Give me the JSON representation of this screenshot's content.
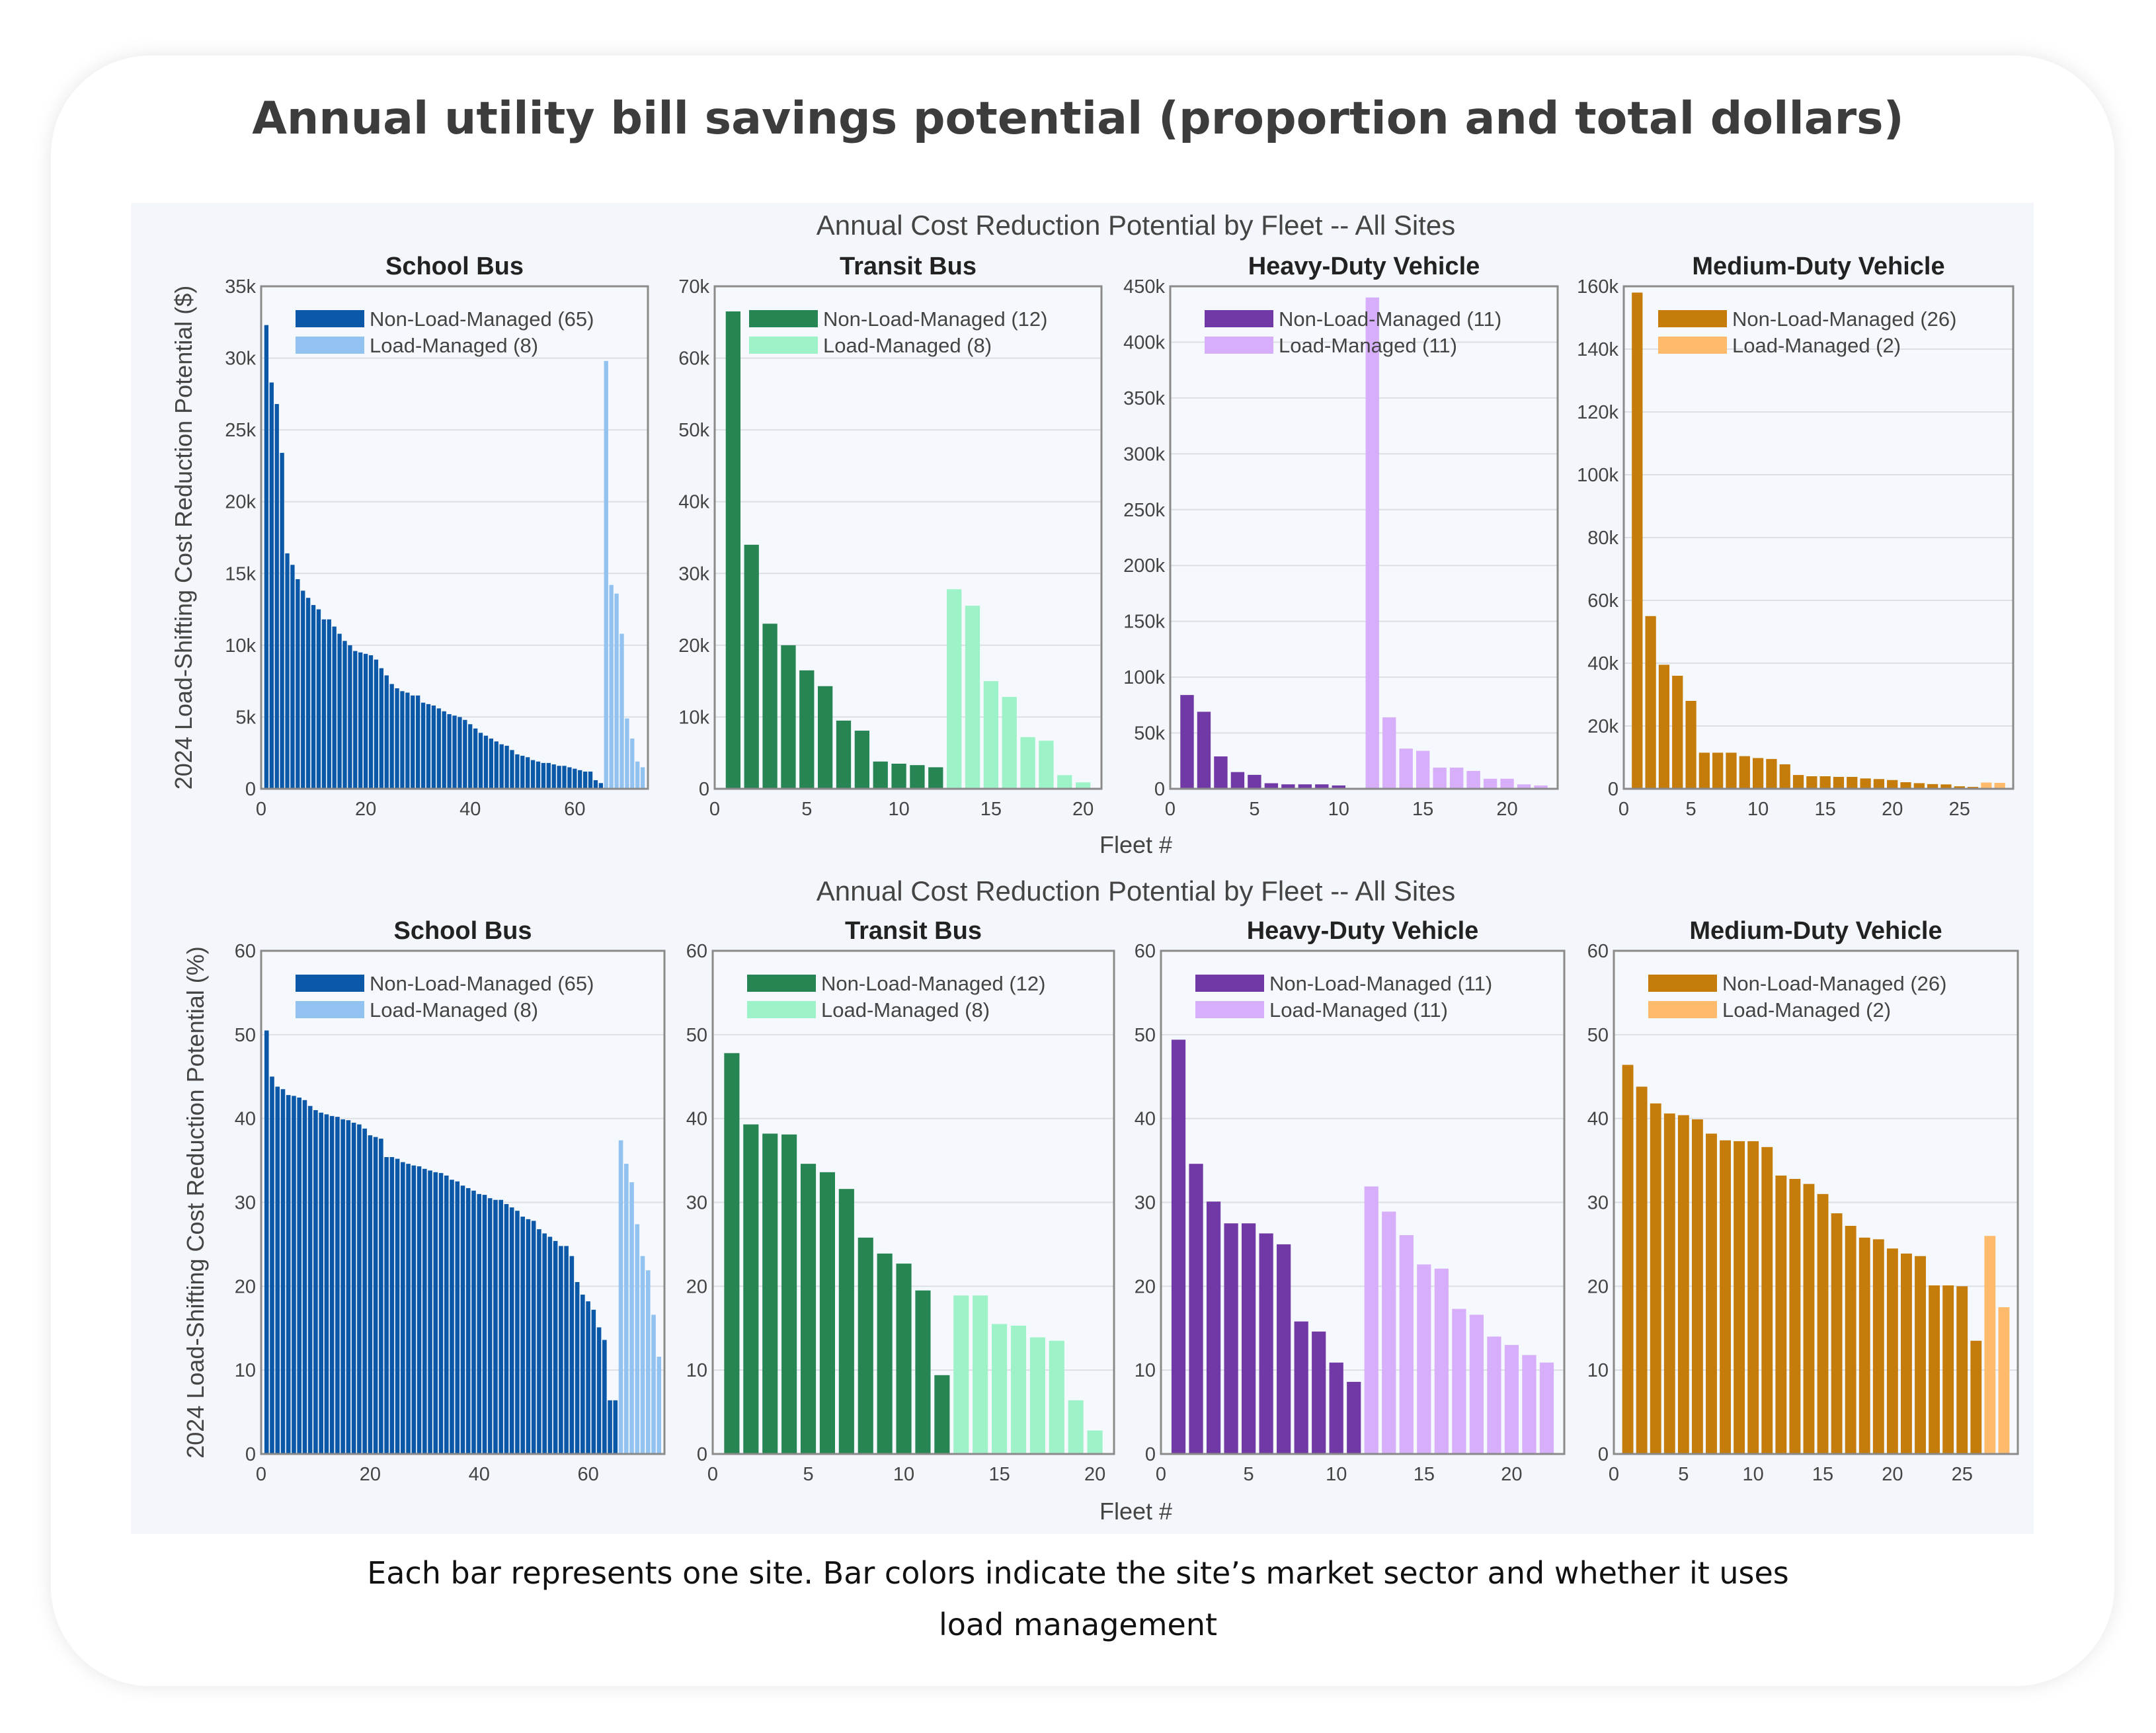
{
  "header": {
    "title": "Annual utility bill savings potential (proportion and total dollars)"
  },
  "caption": "Each bar represents one site. Bar colors indicate the site’s market sector and whether it uses load management",
  "rows": [
    {
      "suptitle": "Annual Cost Reduction Potential by Fleet -- All Sites",
      "ylabel": "2024 Load-Shifting Cost Reduction Potential ($)",
      "xlabel": "Fleet #"
    },
    {
      "suptitle": "Annual Cost Reduction Potential by Fleet -- All Sites",
      "ylabel": "2024 Load-Shifting Cost Reduction Potential (%)",
      "xlabel": "Fleet #"
    }
  ],
  "chart_data": [
    {
      "type": "bar",
      "row": 0,
      "title": "School Bus",
      "xlim": [
        0,
        74
      ],
      "xticks": [
        0,
        20,
        40,
        60
      ],
      "ylim": [
        0,
        35000
      ],
      "yticks": [
        0,
        5000,
        10000,
        15000,
        20000,
        25000,
        30000,
        35000
      ],
      "ytick_labels": [
        "0",
        "5k",
        "10k",
        "15k",
        "20k",
        "25k",
        "30k",
        "35k"
      ],
      "grid": true,
      "legend": "top-right",
      "series": [
        {
          "name": "Non-Load-Managed (65)",
          "color": "#0b57a8",
          "values": [
            32300,
            28300,
            26800,
            23400,
            16400,
            15600,
            14600,
            13800,
            13300,
            12800,
            12500,
            11800,
            11800,
            11300,
            10800,
            10300,
            10000,
            9600,
            9500,
            9400,
            9300,
            9000,
            8400,
            7900,
            7300,
            7000,
            6800,
            6700,
            6500,
            6500,
            6000,
            5900,
            5800,
            5600,
            5400,
            5200,
            5100,
            5000,
            4800,
            4500,
            4200,
            3900,
            3700,
            3500,
            3300,
            3100,
            3000,
            2700,
            2400,
            2300,
            2200,
            2000,
            1900,
            1800,
            1800,
            1700,
            1600,
            1600,
            1500,
            1400,
            1300,
            1200,
            1200,
            600,
            400
          ]
        },
        {
          "name": "Load-Managed (8)",
          "color": "#92c2ef",
          "values": [
            29800,
            14200,
            13600,
            10800,
            4900,
            3500,
            1900,
            1500
          ]
        }
      ]
    },
    {
      "type": "bar",
      "row": 0,
      "title": "Transit Bus",
      "xlim": [
        0,
        21
      ],
      "xticks": [
        0,
        5,
        10,
        15,
        20
      ],
      "ylim": [
        0,
        70000
      ],
      "yticks": [
        0,
        10000,
        20000,
        30000,
        40000,
        50000,
        60000,
        70000
      ],
      "ytick_labels": [
        "0",
        "10k",
        "20k",
        "30k",
        "40k",
        "50k",
        "60k",
        "70k"
      ],
      "grid": true,
      "legend": "top-right",
      "series": [
        {
          "name": "Non-Load-Managed (12)",
          "color": "#268552",
          "values": [
            66500,
            34000,
            23000,
            20000,
            16500,
            14300,
            9500,
            8100,
            3800,
            3500,
            3300,
            3000
          ]
        },
        {
          "name": "Load-Managed (8)",
          "color": "#9ef2c8",
          "values": [
            27800,
            25500,
            15000,
            12800,
            7200,
            6700,
            1900,
            900
          ]
        }
      ]
    },
    {
      "type": "bar",
      "row": 0,
      "title": "Heavy-Duty Vehicle",
      "xlim": [
        0,
        23
      ],
      "xticks": [
        0,
        5,
        10,
        15,
        20
      ],
      "ylim": [
        0,
        450000
      ],
      "yticks": [
        0,
        50000,
        100000,
        150000,
        200000,
        250000,
        300000,
        350000,
        400000,
        450000
      ],
      "ytick_labels": [
        "0",
        "50k",
        "100k",
        "150k",
        "200k",
        "250k",
        "300k",
        "350k",
        "400k",
        "450k"
      ],
      "grid": true,
      "legend": "top-right",
      "series": [
        {
          "name": "Non-Load-Managed (11)",
          "color": "#7139a6",
          "values": [
            84000,
            69000,
            29000,
            15000,
            12500,
            5000,
            4000,
            4000,
            4000,
            3000,
            300
          ]
        },
        {
          "name": "Load-Managed (11)",
          "color": "#d6aef9",
          "values": [
            440000,
            64000,
            36000,
            34000,
            19000,
            19000,
            16000,
            9000,
            9000,
            4000,
            3000
          ]
        }
      ]
    },
    {
      "type": "bar",
      "row": 0,
      "title": "Medium-Duty Vehicle",
      "xlim": [
        0,
        29
      ],
      "xticks": [
        0,
        5,
        10,
        15,
        20,
        25
      ],
      "ylim": [
        0,
        160000
      ],
      "yticks": [
        0,
        20000,
        40000,
        60000,
        80000,
        100000,
        120000,
        140000,
        160000
      ],
      "ytick_labels": [
        "0",
        "20k",
        "40k",
        "60k",
        "80k",
        "100k",
        "120k",
        "140k",
        "160k"
      ],
      "grid": true,
      "legend": "top-right",
      "series": [
        {
          "name": "Non-Load-Managed (26)",
          "color": "#c67c0a",
          "values": [
            158000,
            55000,
            39500,
            36000,
            28000,
            11500,
            11500,
            11500,
            10400,
            9800,
            9500,
            7800,
            4400,
            4000,
            4000,
            3800,
            3800,
            3300,
            3100,
            2800,
            2100,
            1800,
            1500,
            1400,
            800,
            600
          ]
        },
        {
          "name": "Load-Managed (2)",
          "color": "#ffbb6b",
          "values": [
            2000,
            1900
          ]
        }
      ]
    },
    {
      "type": "bar",
      "row": 1,
      "title": "School Bus",
      "xlim": [
        0,
        74
      ],
      "xticks": [
        0,
        20,
        40,
        60
      ],
      "ylim": [
        0,
        60
      ],
      "yticks": [
        0,
        10,
        20,
        30,
        40,
        50,
        60
      ],
      "ytick_labels": [
        "0",
        "10",
        "20",
        "30",
        "40",
        "50",
        "60"
      ],
      "grid": true,
      "legend": "top-right",
      "series": [
        {
          "name": "Non-Load-Managed (65)",
          "color": "#0b57a8",
          "values": [
            50.5,
            45,
            43.8,
            43.5,
            42.8,
            42.7,
            42.5,
            42.2,
            41.5,
            41,
            40.7,
            40.5,
            40.3,
            40.2,
            39.9,
            39.8,
            39.5,
            39.3,
            38.8,
            38.0,
            37.8,
            37.6,
            35.4,
            35.4,
            35.2,
            34.8,
            34.6,
            34.4,
            34.3,
            34.0,
            33.8,
            33.6,
            33.5,
            33.2,
            32.7,
            32.5,
            32.0,
            31.7,
            31.4,
            31.0,
            30.9,
            30.5,
            30.3,
            30.3,
            29.8,
            29.4,
            29.0,
            28.3,
            28.0,
            27.8,
            26.8,
            26.3,
            25.9,
            25.4,
            24.8,
            24.8,
            23.6,
            20.5,
            19.0,
            18.2,
            17.2,
            15.1,
            13.6,
            6.4,
            6.4
          ]
        },
        {
          "name": "Load-Managed (8)",
          "color": "#92c2ef",
          "values": [
            37.4,
            34.6,
            32.4,
            27.4,
            23.6,
            21.9,
            16.6,
            11.6
          ]
        }
      ]
    },
    {
      "type": "bar",
      "row": 1,
      "title": "Transit Bus",
      "xlim": [
        0,
        21
      ],
      "xticks": [
        0,
        5,
        10,
        15,
        20
      ],
      "ylim": [
        0,
        60
      ],
      "yticks": [
        0,
        10,
        20,
        30,
        40,
        50,
        60
      ],
      "ytick_labels": [
        "0",
        "10",
        "20",
        "30",
        "40",
        "50",
        "60"
      ],
      "grid": true,
      "legend": "top-right",
      "series": [
        {
          "name": "Non-Load-Managed (12)",
          "color": "#268552",
          "values": [
            47.8,
            39.3,
            38.2,
            38.1,
            34.6,
            33.6,
            31.6,
            25.8,
            23.9,
            22.7,
            19.5,
            9.4
          ]
        },
        {
          "name": "Load-Managed (8)",
          "color": "#9ef2c8",
          "values": [
            18.9,
            18.9,
            15.5,
            15.3,
            13.9,
            13.5,
            6.4,
            2.8
          ]
        }
      ]
    },
    {
      "type": "bar",
      "row": 1,
      "title": "Heavy-Duty Vehicle",
      "xlim": [
        0,
        23
      ],
      "xticks": [
        0,
        5,
        10,
        15,
        20
      ],
      "ylim": [
        0,
        60
      ],
      "yticks": [
        0,
        10,
        20,
        30,
        40,
        50,
        60
      ],
      "ytick_labels": [
        "0",
        "10",
        "20",
        "30",
        "40",
        "50",
        "60"
      ],
      "grid": true,
      "legend": "top-right",
      "series": [
        {
          "name": "Non-Load-Managed (11)",
          "color": "#7139a6",
          "values": [
            49.4,
            34.6,
            30.1,
            27.5,
            27.5,
            26.3,
            25.0,
            15.8,
            14.6,
            10.9,
            8.6
          ]
        },
        {
          "name": "Load-Managed (11)",
          "color": "#d6aef9",
          "values": [
            31.9,
            28.9,
            26.1,
            22.6,
            22.1,
            17.3,
            16.6,
            14.0,
            13.0,
            11.8,
            10.9
          ]
        }
      ]
    },
    {
      "type": "bar",
      "row": 1,
      "title": "Medium-Duty Vehicle",
      "xlim": [
        0,
        29
      ],
      "xticks": [
        0,
        5,
        10,
        15,
        20,
        25
      ],
      "ylim": [
        0,
        60
      ],
      "yticks": [
        0,
        10,
        20,
        30,
        40,
        50,
        60
      ],
      "ytick_labels": [
        "0",
        "10",
        "20",
        "30",
        "40",
        "50",
        "60"
      ],
      "grid": true,
      "legend": "top-right",
      "series": [
        {
          "name": "Non-Load-Managed (26)",
          "color": "#c67c0a",
          "values": [
            46.4,
            43.8,
            41.8,
            40.6,
            40.4,
            39.9,
            38.2,
            37.4,
            37.3,
            37.3,
            36.6,
            33.2,
            32.8,
            32.2,
            31.0,
            28.7,
            27.2,
            25.8,
            25.6,
            24.5,
            23.9,
            23.6,
            20.1,
            20.1,
            20.0,
            13.5
          ]
        },
        {
          "name": "Load-Managed (2)",
          "color": "#ffbb6b",
          "values": [
            26.0,
            17.5
          ]
        }
      ]
    }
  ]
}
